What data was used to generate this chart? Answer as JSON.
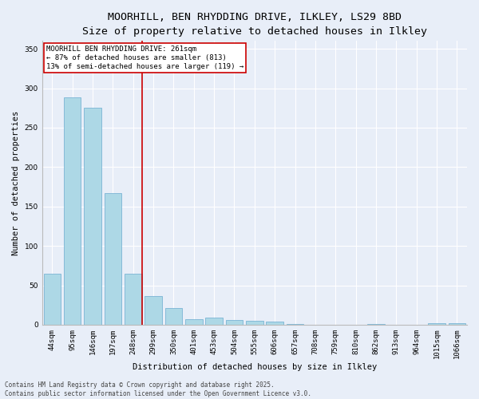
{
  "title_line1": "MOORHILL, BEN RHYDDING DRIVE, ILKLEY, LS29 8BD",
  "title_line2": "Size of property relative to detached houses in Ilkley",
  "categories": [
    "44sqm",
    "95sqm",
    "146sqm",
    "197sqm",
    "248sqm",
    "299sqm",
    "350sqm",
    "401sqm",
    "453sqm",
    "504sqm",
    "555sqm",
    "606sqm",
    "657sqm",
    "708sqm",
    "759sqm",
    "810sqm",
    "862sqm",
    "913sqm",
    "964sqm",
    "1015sqm",
    "1066sqm"
  ],
  "values": [
    65,
    288,
    275,
    167,
    65,
    36,
    21,
    7,
    9,
    6,
    5,
    4,
    1,
    0,
    0,
    0,
    1,
    0,
    0,
    2,
    2
  ],
  "bar_color": "#add8e6",
  "bar_edge_color": "#6aabcf",
  "vline_x_index": 4,
  "vline_color": "#cc0000",
  "xlabel": "Distribution of detached houses by size in Ilkley",
  "ylabel": "Number of detached properties",
  "ylim": [
    0,
    360
  ],
  "yticks": [
    0,
    50,
    100,
    150,
    200,
    250,
    300,
    350
  ],
  "annotation_text": "MOORHILL BEN RHYDDING DRIVE: 261sqm\n← 87% of detached houses are smaller (813)\n13% of semi-detached houses are larger (119) →",
  "annotation_box_color": "#ffffff",
  "annotation_box_edge": "#cc0000",
  "footer_text": "Contains HM Land Registry data © Crown copyright and database right 2025.\nContains public sector information licensed under the Open Government Licence v3.0.",
  "bg_color": "#e8eef8",
  "plot_bg_color": "#e8eef8",
  "grid_color": "#ffffff",
  "title_fontsize": 9.5,
  "subtitle_fontsize": 8.5,
  "axis_label_fontsize": 7.5,
  "tick_fontsize": 6.5,
  "annotation_fontsize": 6.5,
  "footer_fontsize": 5.5
}
